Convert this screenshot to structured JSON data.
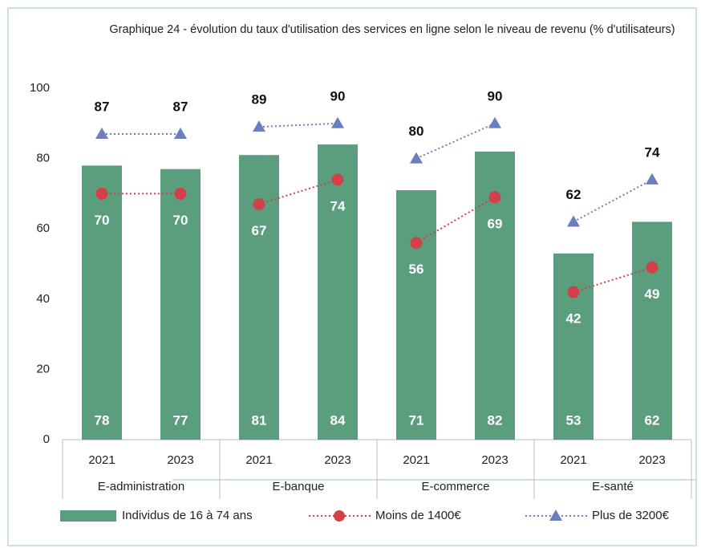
{
  "chart_data": {
    "type": "bar_line",
    "title": "Graphique 24 - évolution du taux d'utilisation des services en ligne selon le niveau de revenu  (% d'utilisateurs)",
    "categories": [
      "2021",
      "2023",
      "2021",
      "2023",
      "2021",
      "2023",
      "2021",
      "2023"
    ],
    "groups": [
      "E-administration",
      "E-banque",
      "E-commerce",
      "E-santé"
    ],
    "series": [
      {
        "name": "Individus de 16 à 74 ans",
        "type": "bar",
        "color": "#5b9e7d",
        "values": [
          78,
          77,
          81,
          84,
          71,
          82,
          53,
          62
        ]
      },
      {
        "name": "Moins de 1400€",
        "type": "line",
        "marker": "circle",
        "color": "#d2404a",
        "values": [
          70,
          70,
          67,
          74,
          56,
          69,
          42,
          49
        ]
      },
      {
        "name": "Plus de 3200€",
        "type": "line",
        "marker": "triangle",
        "color": "#6a7fc0",
        "values": [
          87,
          87,
          89,
          90,
          80,
          90,
          62,
          74
        ]
      }
    ],
    "ylim": [
      0,
      100
    ],
    "yticks": [
      0,
      20,
      40,
      60,
      80,
      100
    ],
    "grid": false,
    "legend": "bottom"
  }
}
